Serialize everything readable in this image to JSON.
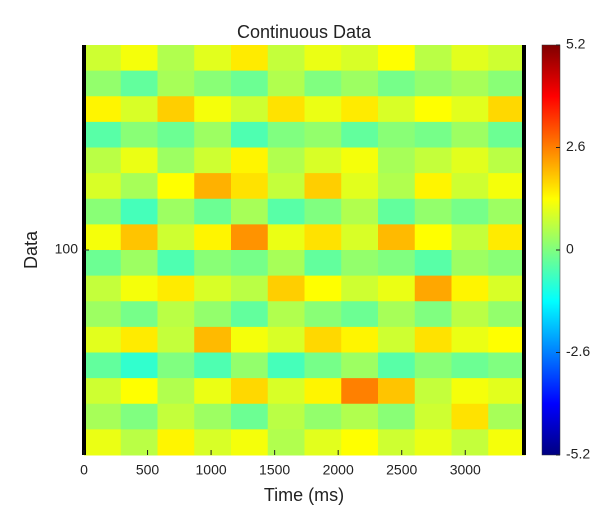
{
  "chart_data": {
    "type": "heatmap",
    "title": "Continuous Data",
    "xlabel": "Time (ms)",
    "ylabel": "Data",
    "xlim": [
      0,
      3470
    ],
    "xticks": [
      0,
      500,
      1000,
      1500,
      2000,
      2500,
      3000
    ],
    "ylim": [
      200,
      0
    ],
    "yticks": [
      100
    ],
    "clim": [
      -5.2,
      5.2
    ],
    "cticks": [
      5.2,
      2.6,
      0,
      -2.6,
      -5.2
    ],
    "colormap": "jet",
    "z": [
      [
        0.8,
        1.2,
        0.5,
        1.0,
        1.5,
        0.7,
        1.1,
        0.9,
        1.3,
        0.6,
        1.0,
        0.8
      ],
      [
        0.2,
        -0.3,
        0.4,
        0.1,
        -0.2,
        0.5,
        0.0,
        0.3,
        -0.1,
        0.2,
        0.4,
        0.1
      ],
      [
        1.4,
        0.9,
        1.8,
        1.2,
        0.8,
        1.6,
        1.1,
        1.5,
        0.9,
        1.3,
        1.0,
        1.7
      ],
      [
        -0.4,
        0.1,
        -0.2,
        0.3,
        -0.5,
        0.0,
        0.2,
        -0.3,
        0.1,
        -0.1,
        0.3,
        -0.2
      ],
      [
        0.6,
        1.1,
        0.3,
        0.8,
        1.4,
        0.5,
        0.9,
        1.2,
        0.4,
        0.7,
        1.0,
        0.6
      ],
      [
        0.9,
        0.4,
        1.3,
        2.1,
        1.6,
        0.7,
        1.8,
        1.0,
        0.5,
        1.4,
        0.8,
        1.2
      ],
      [
        0.1,
        -0.6,
        0.3,
        -0.2,
        0.4,
        -0.4,
        0.0,
        0.5,
        -0.3,
        0.2,
        -0.1,
        0.3
      ],
      [
        1.2,
        1.9,
        0.8,
        1.4,
        2.4,
        1.1,
        1.6,
        0.9,
        2.0,
        1.3,
        0.7,
        1.5
      ],
      [
        -0.2,
        0.3,
        -0.5,
        0.1,
        -0.1,
        0.4,
        -0.3,
        0.2,
        0.0,
        -0.4,
        0.3,
        0.1
      ],
      [
        0.7,
        1.2,
        1.5,
        0.9,
        0.6,
        1.8,
        1.3,
        0.8,
        1.1,
        2.2,
        1.4,
        0.9
      ],
      [
        0.3,
        -0.1,
        0.6,
        0.2,
        -0.3,
        0.5,
        0.1,
        -0.2,
        0.4,
        0.0,
        0.6,
        0.2
      ],
      [
        1.0,
        1.5,
        0.7,
        2.0,
        1.2,
        0.9,
        1.7,
        1.4,
        0.8,
        1.6,
        1.1,
        1.3
      ],
      [
        -0.3,
        -0.8,
        0.0,
        -0.5,
        0.2,
        -0.6,
        -0.1,
        0.3,
        -0.4,
        0.1,
        -0.2,
        0.0
      ],
      [
        0.8,
        1.3,
        0.5,
        1.1,
        1.7,
        0.9,
        1.4,
        2.6,
        1.9,
        0.7,
        1.2,
        1.0
      ],
      [
        0.4,
        0.0,
        0.7,
        0.3,
        -0.2,
        0.6,
        0.2,
        0.5,
        0.1,
        0.8,
        1.6,
        0.4
      ],
      [
        1.1,
        0.6,
        1.4,
        0.9,
        1.2,
        0.5,
        1.0,
        1.3,
        0.8,
        1.1,
        0.7,
        1.2
      ]
    ]
  }
}
